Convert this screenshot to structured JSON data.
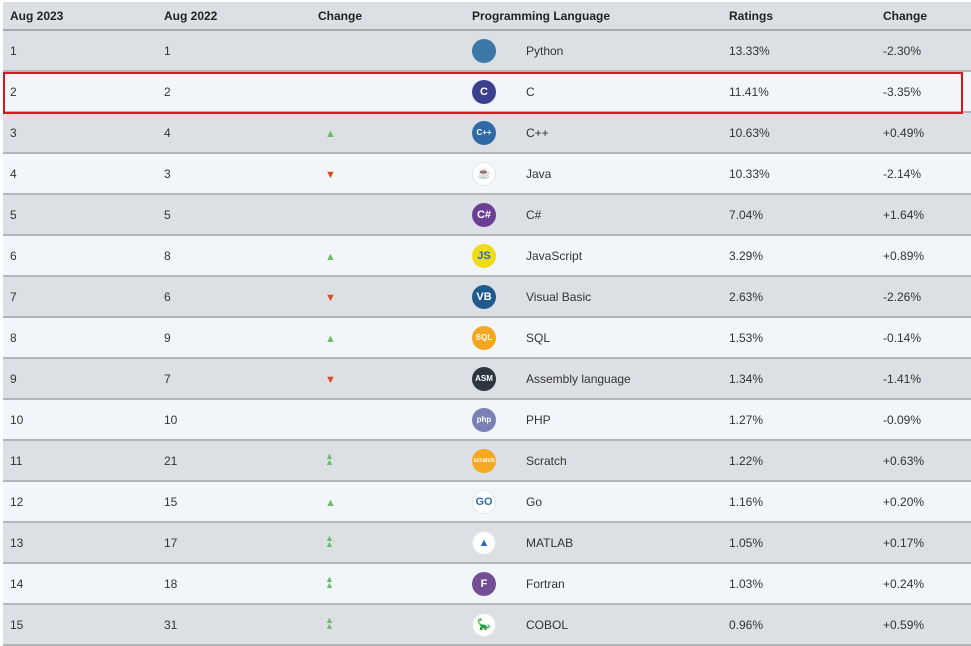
{
  "headers": {
    "rank_2023": "Aug 2023",
    "rank_2022": "Aug 2022",
    "change": "Change",
    "language": "Programming Language",
    "ratings": "Ratings",
    "ratings_change": "Change"
  },
  "colors": {
    "up": "#6cbd6c",
    "down": "#e04a1f",
    "highlight": "#e0141e",
    "row_odd": "#dcdfe3",
    "row_even": "#f2f6fa"
  },
  "highlighted_row": 2,
  "rows": [
    {
      "r23": "1",
      "r22": "1",
      "trend": "none",
      "icon": "python-logo",
      "icon_text": "",
      "icon_bg": "#3d77a8",
      "name": "Python",
      "rating": "13.33%",
      "change": "-2.30%"
    },
    {
      "r23": "2",
      "r22": "2",
      "trend": "none",
      "icon": "c-logo",
      "icon_text": "C",
      "icon_bg": "#3b3f8f",
      "name": "C",
      "rating": "11.41%",
      "change": "-3.35%"
    },
    {
      "r23": "3",
      "r22": "4",
      "trend": "up",
      "icon": "cpp-logo",
      "icon_text": "C++",
      "icon_bg": "#2f6aa7",
      "name": "C++",
      "rating": "10.63%",
      "change": "+0.49%"
    },
    {
      "r23": "4",
      "r22": "3",
      "trend": "down",
      "icon": "java-logo",
      "icon_text": "☕",
      "icon_bg": "#ffffff",
      "name": "Java",
      "rating": "10.33%",
      "change": "-2.14%"
    },
    {
      "r23": "5",
      "r22": "5",
      "trend": "none",
      "icon": "csharp-logo",
      "icon_text": "C#",
      "icon_bg": "#6a3f93",
      "name": "C#",
      "rating": "7.04%",
      "change": "+1.64%"
    },
    {
      "r23": "6",
      "r22": "8",
      "trend": "up",
      "icon": "javascript-logo",
      "icon_text": "JS",
      "icon_bg": "#f0db1a",
      "name": "JavaScript",
      "rating": "3.29%",
      "change": "+0.89%"
    },
    {
      "r23": "7",
      "r22": "6",
      "trend": "down",
      "icon": "visual-basic-logo",
      "icon_text": "VB",
      "icon_bg": "#1e5a8e",
      "name": "Visual Basic",
      "rating": "2.63%",
      "change": "-2.26%"
    },
    {
      "r23": "8",
      "r22": "9",
      "trend": "up",
      "icon": "sql-logo",
      "icon_text": "SQL",
      "icon_bg": "#f5a623",
      "name": "SQL",
      "rating": "1.53%",
      "change": "-0.14%"
    },
    {
      "r23": "9",
      "r22": "7",
      "trend": "down",
      "icon": "assembly-logo",
      "icon_text": "ASM",
      "icon_bg": "#2d3640",
      "name": "Assembly language",
      "rating": "1.34%",
      "change": "-1.41%"
    },
    {
      "r23": "10",
      "r22": "10",
      "trend": "none",
      "icon": "php-logo",
      "icon_text": "php",
      "icon_bg": "#7a80b4",
      "name": "PHP",
      "rating": "1.27%",
      "change": "-0.09%"
    },
    {
      "r23": "11",
      "r22": "21",
      "trend": "up2",
      "icon": "scratch-logo",
      "icon_text": "scratch",
      "icon_bg": "#f7a823",
      "name": "Scratch",
      "rating": "1.22%",
      "change": "+0.63%"
    },
    {
      "r23": "12",
      "r22": "15",
      "trend": "up",
      "icon": "go-logo",
      "icon_text": "GO",
      "icon_bg": "#ffffff",
      "name": "Go",
      "rating": "1.16%",
      "change": "+0.20%"
    },
    {
      "r23": "13",
      "r22": "17",
      "trend": "up2",
      "icon": "matlab-logo",
      "icon_text": "▲",
      "icon_bg": "#ffffff",
      "name": "MATLAB",
      "rating": "1.05%",
      "change": "+0.17%"
    },
    {
      "r23": "14",
      "r22": "18",
      "trend": "up2",
      "icon": "fortran-logo",
      "icon_text": "F",
      "icon_bg": "#734f96",
      "name": "Fortran",
      "rating": "1.03%",
      "change": "+0.24%"
    },
    {
      "r23": "15",
      "r22": "31",
      "trend": "up2",
      "icon": "cobol-logo",
      "icon_text": "🦕",
      "icon_bg": "#ffffff",
      "name": "COBOL",
      "rating": "0.96%",
      "change": "+0.59%"
    }
  ]
}
